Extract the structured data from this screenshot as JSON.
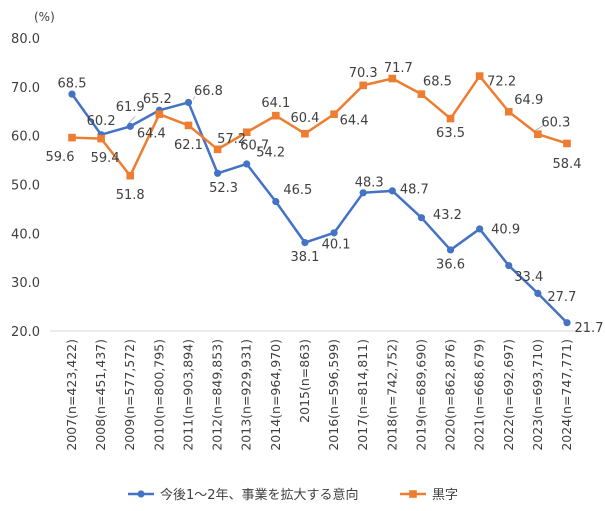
{
  "chart_data": {
    "type": "line",
    "unit_label": "(%)",
    "ylim": [
      20,
      80
    ],
    "yticks": [
      "80.0",
      "70.0",
      "60.0",
      "50.0",
      "40.0",
      "30.0",
      "20.0"
    ],
    "ytick_values": [
      80,
      70,
      60,
      50,
      40,
      30,
      20
    ],
    "categories": [
      "2007(n=423,422)",
      "2008(n=451,437)",
      "2009(n=577,572)",
      "2010(n=800,795)",
      "2011(n=903,894)",
      "2012(n=849,853)",
      "2013(n=929,931)",
      "2014(n=964,970)",
      "2015(n=863)",
      "2016(n=596,599)",
      "2017(n=814,811)",
      "2018(n=742,752)",
      "2019(n=689,690)",
      "2020(n=862,876)",
      "2021(n=668,679)",
      "2022(n=692,697)",
      "2023(n=693,710)",
      "2024(n=747,771)"
    ],
    "series": [
      {
        "name": "今後1～2年、事業を拡大する意向",
        "color": "#4472C4",
        "marker": "circle",
        "values": [
          68.5,
          60.2,
          61.9,
          65.2,
          66.8,
          52.3,
          54.2,
          46.5,
          38.1,
          40.1,
          48.3,
          48.7,
          43.2,
          36.6,
          40.9,
          33.4,
          27.7,
          21.7
        ],
        "labels": [
          "68.5",
          "60.2",
          "61.9",
          "65.2",
          "66.8",
          "52.3",
          "54.2",
          "46.5",
          "38.1",
          "40.1",
          "48.3",
          "48.7",
          "43.2",
          "36.6",
          "40.9",
          "33.4",
          "27.7",
          "21.7"
        ]
      },
      {
        "name": "黒字",
        "color": "#ED7D31",
        "marker": "square",
        "values": [
          59.6,
          59.4,
          51.8,
          64.4,
          62.1,
          57.2,
          60.7,
          64.1,
          60.4,
          64.4,
          70.3,
          71.7,
          68.5,
          63.5,
          72.2,
          64.9,
          60.3,
          58.4
        ],
        "labels": [
          "59.6",
          "59.4",
          "51.8",
          "64.4",
          "62.1",
          "57.2",
          "60.7",
          "64.1",
          "60.4",
          "64.4",
          "70.3",
          "71.7",
          "68.5",
          "63.5",
          "72.2",
          "64.9",
          "60.3",
          "58.4"
        ]
      }
    ],
    "grid": false,
    "legend_position": "bottom"
  }
}
